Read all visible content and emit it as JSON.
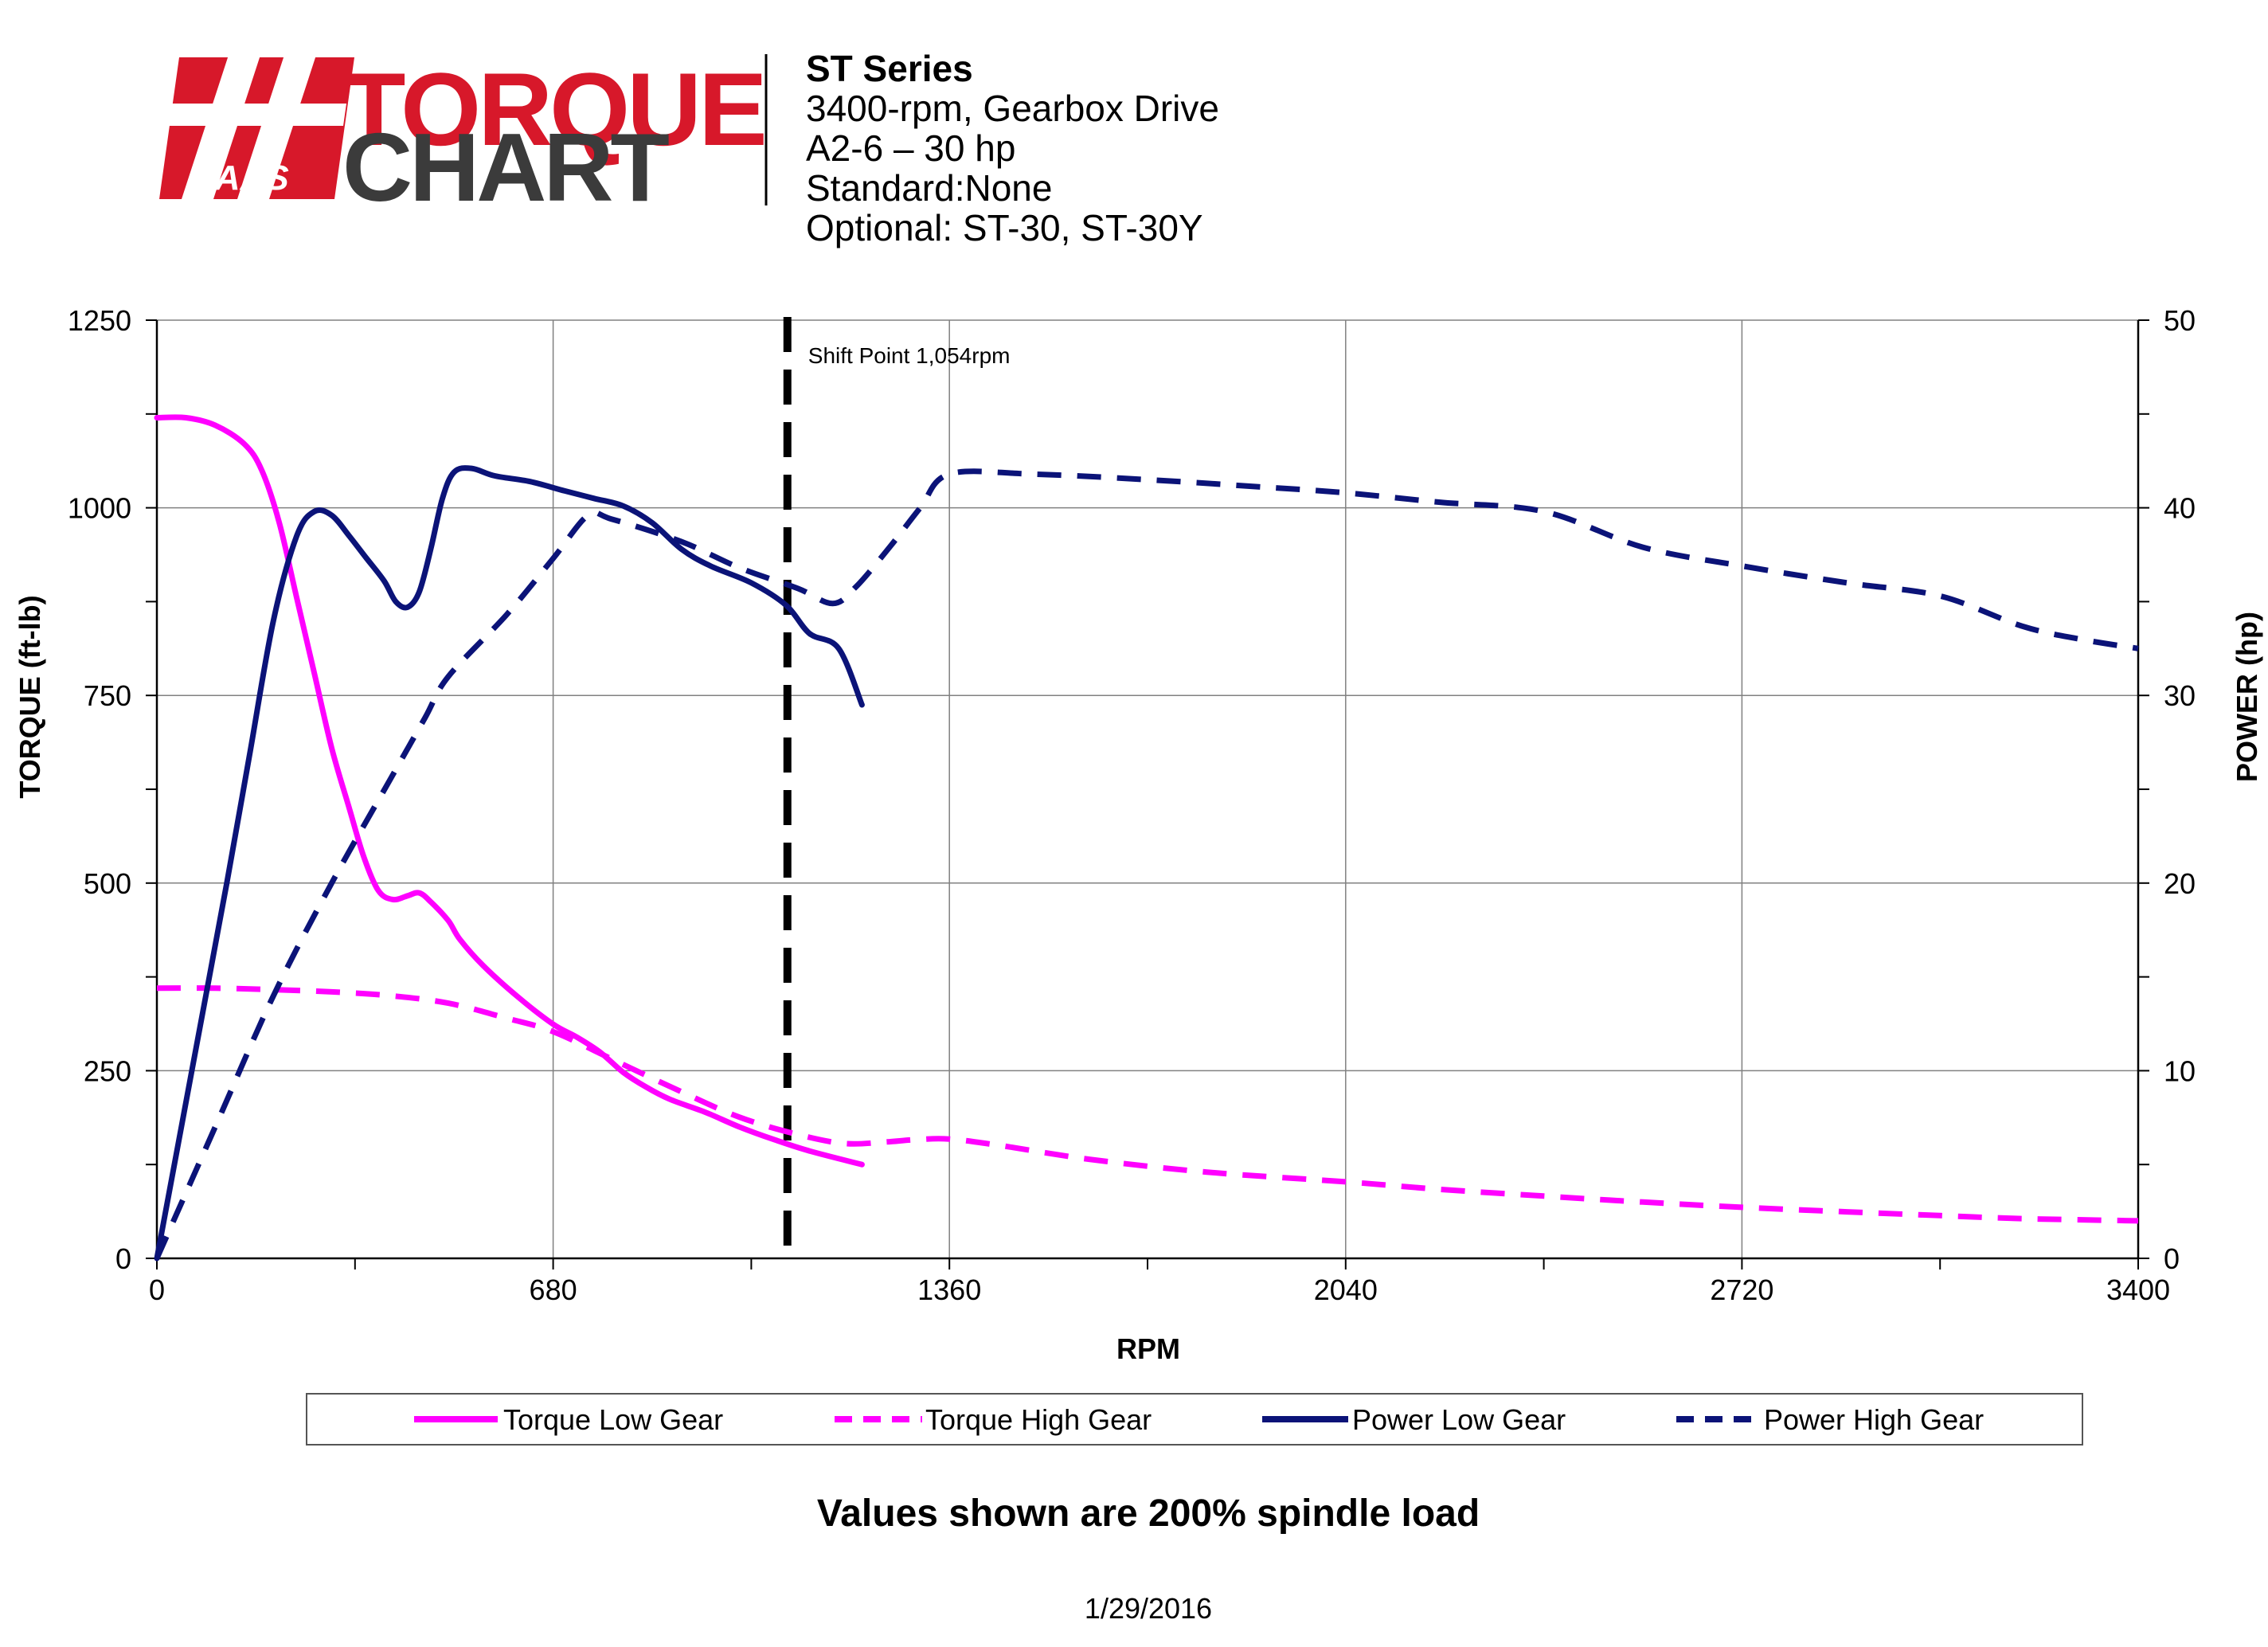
{
  "logo": {
    "word1": "TORQUE",
    "word2": "CHART",
    "brand": "HAAS",
    "brand_color": "#d7182a",
    "dark_color": "#3b3b3b"
  },
  "header": {
    "title": "ST Series",
    "lines": [
      "3400-rpm, Gearbox Drive",
      "A2-6 – 30 hp",
      "Standard:None",
      "Optional: ST-30, ST-30Y"
    ]
  },
  "footer": {
    "note": "Values shown are 200% spindle load",
    "date": "1/29/2016"
  },
  "chart_data": {
    "type": "line",
    "xlabel": "RPM",
    "ylabel_left": "TORQUE (ft-lb)",
    "ylabel_right": "POWER (hp)",
    "xlim": [
      0,
      3400
    ],
    "ylim_left": [
      0,
      1250
    ],
    "ylim_right": [
      0,
      50
    ],
    "x_ticks": [
      0,
      680,
      1360,
      2040,
      2720,
      3400
    ],
    "x_minor_ticks": [
      340,
      1020,
      1700,
      2380,
      3060
    ],
    "y_left_ticks": [
      0,
      250,
      500,
      750,
      1000,
      1250
    ],
    "y_right_ticks": [
      0,
      10,
      20,
      30,
      40,
      50
    ],
    "y_right_minor_ticks": [
      5,
      15,
      25,
      35,
      45
    ],
    "grid": true,
    "legend_position": "bottom",
    "annotation": {
      "text": "Shift Point 1,054rpm",
      "x": 1082
    },
    "series": [
      {
        "name": "Torque Low Gear",
        "axis": "left",
        "color": "#ff00ff",
        "dash": "solid",
        "points": [
          [
            0,
            1120
          ],
          [
            50,
            1120
          ],
          [
            100,
            1110
          ],
          [
            150,
            1085
          ],
          [
            180,
            1050
          ],
          [
            210,
            980
          ],
          [
            240,
            880
          ],
          [
            270,
            780
          ],
          [
            300,
            680
          ],
          [
            330,
            600
          ],
          [
            355,
            535
          ],
          [
            380,
            490
          ],
          [
            405,
            478
          ],
          [
            430,
            483
          ],
          [
            450,
            487
          ],
          [
            470,
            475
          ],
          [
            500,
            450
          ],
          [
            520,
            425
          ],
          [
            560,
            390
          ],
          [
            620,
            348
          ],
          [
            680,
            312
          ],
          [
            720,
            295
          ],
          [
            760,
            275
          ],
          [
            800,
            248
          ],
          [
            840,
            228
          ],
          [
            880,
            212
          ],
          [
            940,
            195
          ],
          [
            1000,
            175
          ],
          [
            1060,
            158
          ],
          [
            1120,
            143
          ],
          [
            1210,
            125
          ]
        ]
      },
      {
        "name": "Torque High Gear",
        "axis": "left",
        "color": "#ff00ff",
        "dash": "dashed",
        "points": [
          [
            0,
            360
          ],
          [
            100,
            360
          ],
          [
            200,
            358
          ],
          [
            300,
            355
          ],
          [
            400,
            350
          ],
          [
            500,
            340
          ],
          [
            600,
            320
          ],
          [
            680,
            302
          ],
          [
            790,
            262
          ],
          [
            900,
            222
          ],
          [
            1000,
            188
          ],
          [
            1100,
            165
          ],
          [
            1180,
            153
          ],
          [
            1250,
            155
          ],
          [
            1300,
            158
          ],
          [
            1360,
            159
          ],
          [
            1450,
            150
          ],
          [
            1600,
            132
          ],
          [
            1800,
            115
          ],
          [
            2040,
            102
          ],
          [
            2200,
            92
          ],
          [
            2380,
            83
          ],
          [
            2550,
            75
          ],
          [
            2720,
            68
          ],
          [
            2900,
            62
          ],
          [
            3060,
            57
          ],
          [
            3200,
            53
          ],
          [
            3400,
            50
          ]
        ]
      },
      {
        "name": "Power Low Gear",
        "axis": "right",
        "color": "#0b1378",
        "dash": "solid",
        "points": [
          [
            0,
            0
          ],
          [
            60,
            10
          ],
          [
            120,
            20
          ],
          [
            160,
            27
          ],
          [
            200,
            34
          ],
          [
            240,
            38.5
          ],
          [
            270,
            39.8
          ],
          [
            300,
            39.6
          ],
          [
            330,
            38.5
          ],
          [
            360,
            37.3
          ],
          [
            390,
            36.1
          ],
          [
            410,
            35
          ],
          [
            430,
            34.7
          ],
          [
            450,
            35.5
          ],
          [
            470,
            37.8
          ],
          [
            490,
            40.5
          ],
          [
            510,
            41.9
          ],
          [
            540,
            42.1
          ],
          [
            580,
            41.7
          ],
          [
            640,
            41.4
          ],
          [
            700,
            40.9
          ],
          [
            750,
            40.5
          ],
          [
            800,
            40.1
          ],
          [
            850,
            39.2
          ],
          [
            900,
            37.8
          ],
          [
            950,
            36.9
          ],
          [
            1020,
            36
          ],
          [
            1080,
            34.8
          ],
          [
            1120,
            33.3
          ],
          [
            1170,
            32.5
          ],
          [
            1210,
            29.5
          ]
        ]
      },
      {
        "name": "Power High Gear",
        "axis": "right",
        "color": "#0b1378",
        "dash": "dashed",
        "points": [
          [
            0,
            0
          ],
          [
            100,
            7
          ],
          [
            200,
            14
          ],
          [
            300,
            20
          ],
          [
            400,
            25.5
          ],
          [
            460,
            28.8
          ],
          [
            500,
            31
          ],
          [
            600,
            34.3
          ],
          [
            680,
            37.3
          ],
          [
            740,
            39.6
          ],
          [
            780,
            39.4
          ],
          [
            900,
            38.2
          ],
          [
            1000,
            36.8
          ],
          [
            1100,
            35.7
          ],
          [
            1160,
            34.9
          ],
          [
            1200,
            35.8
          ],
          [
            1260,
            38
          ],
          [
            1310,
            40
          ],
          [
            1360,
            41.8
          ],
          [
            1500,
            41.8
          ],
          [
            1700,
            41.5
          ],
          [
            1900,
            41.1
          ],
          [
            2040,
            40.8
          ],
          [
            2200,
            40.3
          ],
          [
            2380,
            39.8
          ],
          [
            2550,
            37.9
          ],
          [
            2720,
            36.9
          ],
          [
            2900,
            36
          ],
          [
            3060,
            35.3
          ],
          [
            3200,
            33.7
          ],
          [
            3300,
            33
          ],
          [
            3400,
            32.5
          ]
        ]
      }
    ]
  }
}
